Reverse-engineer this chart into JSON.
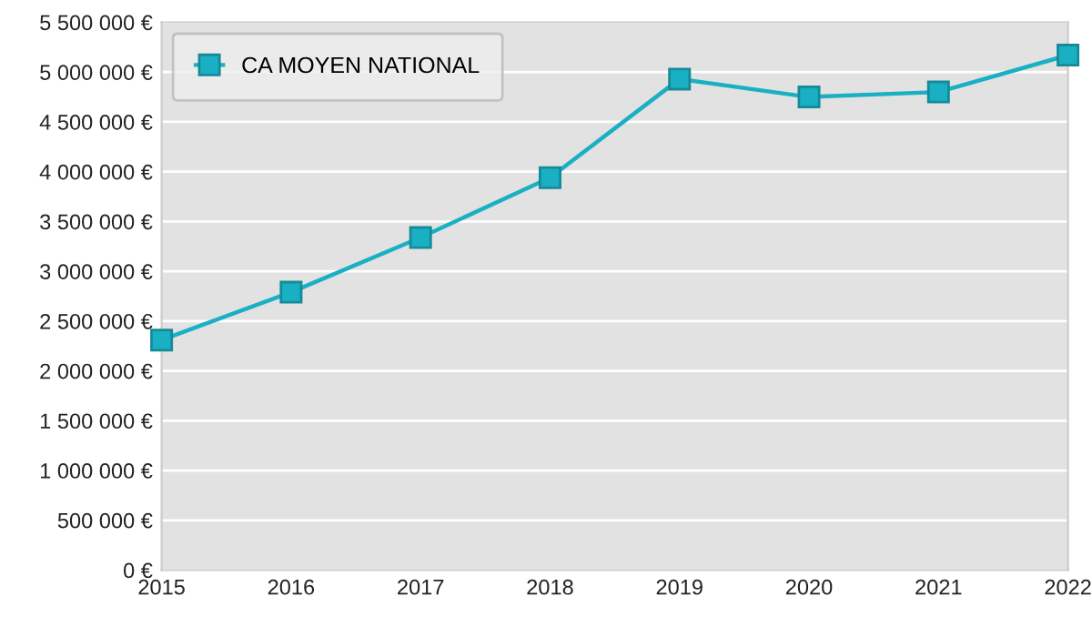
{
  "chart_data": {
    "type": "line",
    "x": [
      2015,
      2016,
      2017,
      2018,
      2019,
      2020,
      2021,
      2022
    ],
    "series": [
      {
        "name": "CA MOYEN NATIONAL",
        "color": "#1ab0c4",
        "values": [
          2310000,
          2790000,
          3340000,
          3940000,
          4930000,
          4750000,
          4800000,
          5170000
        ]
      }
    ],
    "xlim": [
      2015,
      2022
    ],
    "xticks": [
      2015,
      2016,
      2017,
      2018,
      2019,
      2020,
      2021,
      2022
    ],
    "ylim": [
      0,
      5500000
    ],
    "yticks": [
      {
        "value": 0,
        "label": "0 €"
      },
      {
        "value": 500000,
        "label": "500 000 €"
      },
      {
        "value": 1000000,
        "label": "1 000 000 €"
      },
      {
        "value": 1500000,
        "label": "1 500 000 €"
      },
      {
        "value": 2000000,
        "label": "2 000 000 €"
      },
      {
        "value": 2500000,
        "label": "2 500 000 €"
      },
      {
        "value": 3000000,
        "label": "3 000 000 €"
      },
      {
        "value": 3500000,
        "label": "3 500 000 €"
      },
      {
        "value": 4000000,
        "label": "4 000 000 €"
      },
      {
        "value": 4500000,
        "label": "4 500 000 €"
      },
      {
        "value": 5000000,
        "label": "5 000 000 €"
      },
      {
        "value": 5500000,
        "label": "5 500 000 €"
      }
    ],
    "grid": "y",
    "legend": "top left",
    "marker": "square",
    "line_style": "solid"
  }
}
